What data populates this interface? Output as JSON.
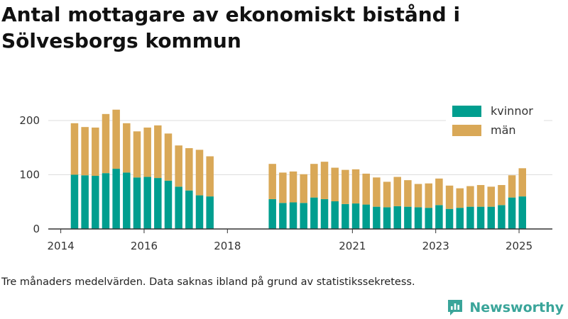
{
  "title": "Antal mottagare av ekonomiskt bistånd i Sölvesborgs kommun",
  "note": "Tre månaders medelvärden. Data saknas ibland på grund av statistikssekretess.",
  "brand": {
    "name": "Newsworthy",
    "color": "#3aa59a"
  },
  "chart_data": {
    "type": "bar",
    "stacked": true,
    "x_unit": "year",
    "xlim": [
      2013.7,
      2025.8
    ],
    "ylim": [
      0,
      230
    ],
    "xticks": [
      2014,
      2016,
      2018,
      2021,
      2023,
      2025
    ],
    "yticks": [
      0,
      100,
      200
    ],
    "grid": true,
    "legend_position": "top-right",
    "x": [
      2014.33,
      2014.58,
      2014.83,
      2015.08,
      2015.33,
      2015.58,
      2015.83,
      2016.08,
      2016.33,
      2016.58,
      2016.83,
      2017.08,
      2017.33,
      2017.58,
      2019.08,
      2019.33,
      2019.58,
      2019.83,
      2020.08,
      2020.33,
      2020.58,
      2020.83,
      2021.08,
      2021.33,
      2021.58,
      2021.83,
      2022.08,
      2022.33,
      2022.58,
      2022.83,
      2023.08,
      2023.33,
      2023.58,
      2023.83,
      2024.08,
      2024.33,
      2024.58,
      2024.83,
      2025.08
    ],
    "series": [
      {
        "name": "kvinnor",
        "color": "#009e8f",
        "values": [
          100,
          99,
          98,
          103,
          111,
          104,
          95,
          96,
          94,
          89,
          78,
          71,
          62,
          60,
          55,
          48,
          49,
          48,
          58,
          55,
          51,
          46,
          47,
          45,
          41,
          40,
          42,
          41,
          40,
          39,
          44,
          37,
          39,
          41,
          41,
          41,
          44,
          58,
          60
        ]
      },
      {
        "name": "män",
        "color": "#d9a857",
        "values": [
          95,
          89,
          89,
          109,
          109,
          91,
          85,
          91,
          97,
          87,
          76,
          78,
          84,
          74,
          65,
          56,
          57,
          53,
          62,
          69,
          62,
          63,
          63,
          57,
          54,
          47,
          54,
          49,
          43,
          45,
          49,
          43,
          36,
          38,
          40,
          37,
          37,
          41,
          52
        ]
      }
    ]
  }
}
